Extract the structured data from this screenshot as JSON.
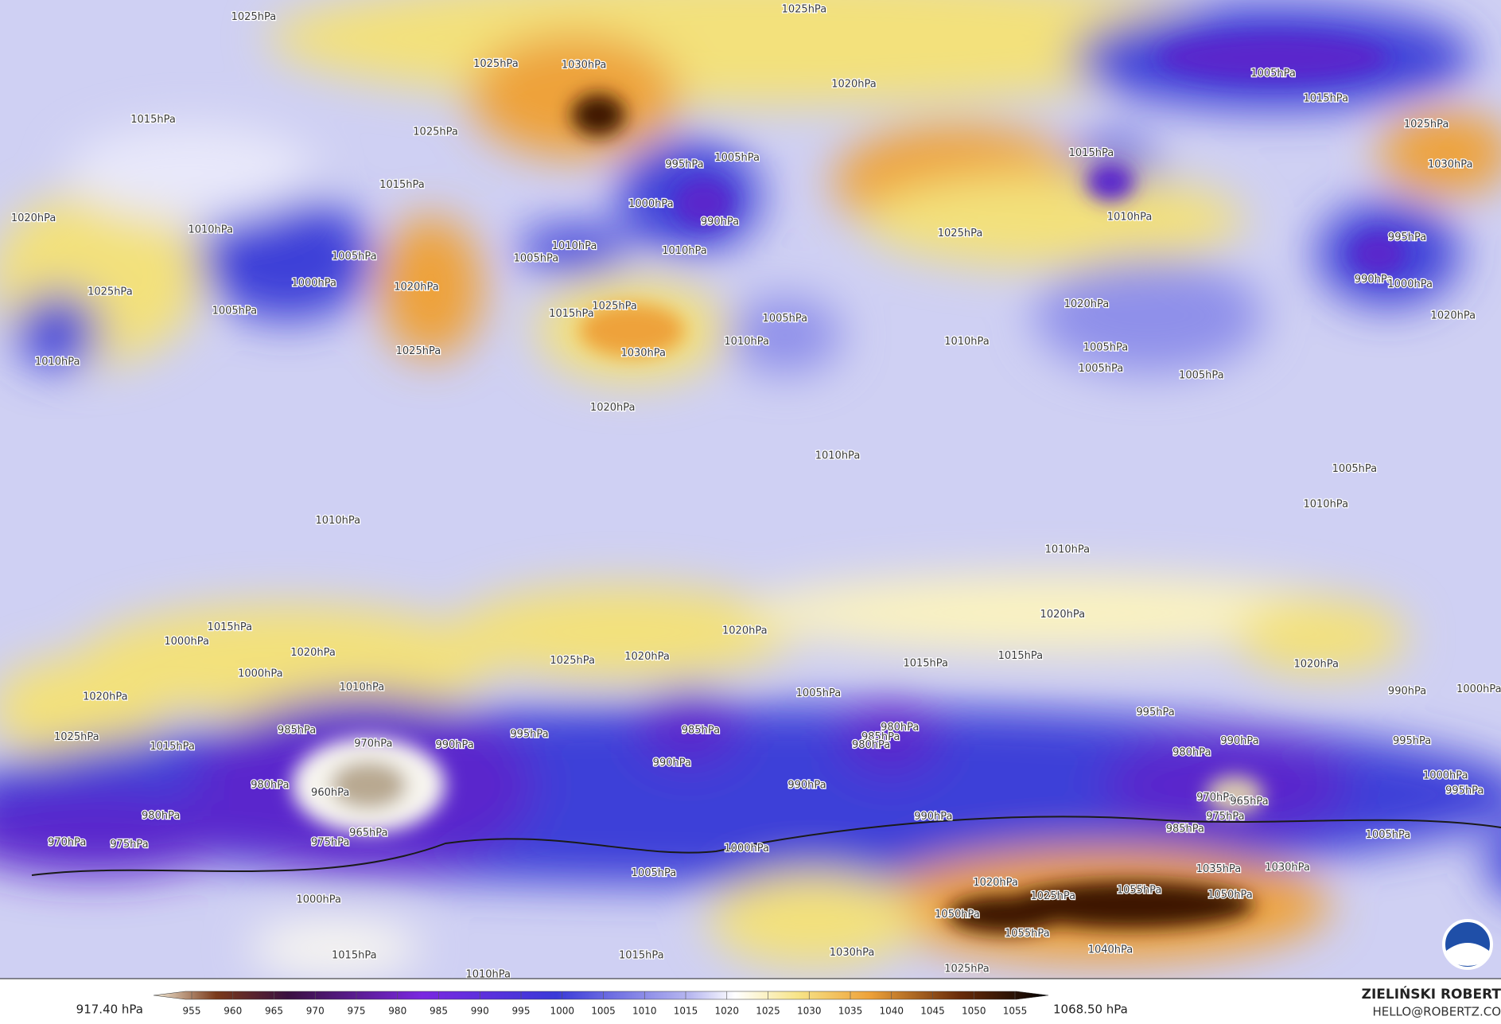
{
  "map": {
    "contour_labels": [
      "1025hPa",
      "1025hPa",
      "1025hPa",
      "1030hPa",
      "1020hPa",
      "1005hPa",
      "1015hPa",
      "1025hPa",
      "1030hPa",
      "1015hPa",
      "1025hPa",
      "1015hPa",
      "1020hPa",
      "1010hPa",
      "1005hPa",
      "1000hPa",
      "1025hPa",
      "1010hPa",
      "1005hPa",
      "1020hPa",
      "1025hPa",
      "995hPa",
      "1005hPa",
      "1000hPa",
      "990hPa",
      "1010hPa",
      "1010hPa",
      "1005hPa",
      "1015hPa",
      "1025hPa",
      "1030hPa",
      "1020hPa",
      "1015hPa",
      "1010hPa",
      "1025hPa",
      "1020hPa",
      "1005hPa",
      "1010hPa",
      "1010hPa",
      "1005hPa",
      "1005hPa",
      "1005hPa",
      "995hPa",
      "990hPa",
      "1000hPa",
      "1020hPa",
      "1010hPa",
      "1005hPa",
      "1010hPa",
      "1010hPa",
      "1010hPa",
      "1020hPa",
      "1020hPa",
      "1015hPa",
      "1020hPa",
      "1000hPa",
      "1000hPa",
      "1010hPa",
      "1020hPa",
      "1025hPa",
      "1015hPa",
      "1025hPa",
      "1020hPa",
      "1015hPa",
      "1015hPa",
      "1020hPa",
      "985hPa",
      "970hPa",
      "960hPa",
      "965hPa",
      "975hPa",
      "980hPa",
      "980hPa",
      "975hPa",
      "970hPa",
      "995hPa",
      "990hPa",
      "985hPa",
      "990hPa",
      "1005hPa",
      "980hPa",
      "985hPa",
      "980hPa",
      "990hPa",
      "990hPa",
      "995hPa",
      "990hPa",
      "980hPa",
      "970hPa",
      "975hPa",
      "965hPa",
      "985hPa",
      "990hPa",
      "995hPa",
      "1000hPa",
      "995hPa",
      "1000hPa",
      "1005hPa",
      "1000hPa",
      "1005hPa",
      "1000hPa",
      "1020hPa",
      "1025hPa",
      "1035hPa",
      "1030hPa",
      "1055hPa",
      "1050hPa",
      "1050hPa",
      "1055hPa",
      "1040hPa",
      "1030hPa",
      "1025hPa",
      "1015hPa",
      "1015hPa",
      "1010hPa"
    ],
    "colorbar": {
      "min_label": "917.40 hPa",
      "max_label": "1068.50 hPa",
      "ticks": [
        955,
        960,
        965,
        970,
        975,
        980,
        985,
        990,
        995,
        1000,
        1005,
        1010,
        1015,
        1020,
        1025,
        1030,
        1035,
        1040,
        1045,
        1050,
        1055
      ]
    },
    "author": "ZIELIŃSKI ROBERT",
    "email": "HELLO@ROBERTZ.CO"
  }
}
